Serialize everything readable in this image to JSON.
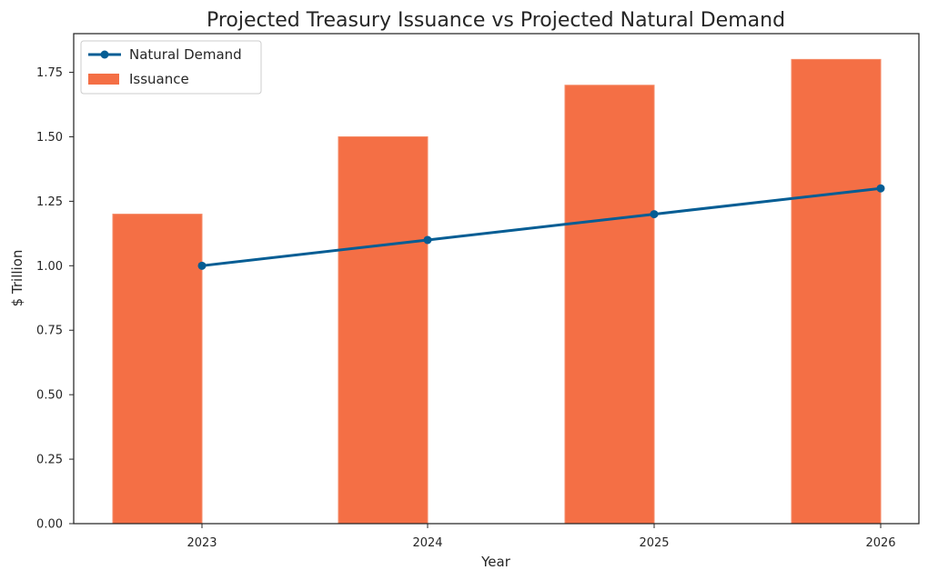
{
  "chart_data": {
    "type": "bar",
    "title": "Projected Treasury Issuance vs Projected Natural Demand",
    "xlabel": "Year",
    "ylabel": "$ Trillion",
    "ylim": [
      0,
      1.9
    ],
    "yticks": [
      "0.00",
      "0.25",
      "0.50",
      "0.75",
      "1.00",
      "1.25",
      "1.50",
      "1.75"
    ],
    "ytick_values": [
      0,
      0.25,
      0.5,
      0.75,
      1.0,
      1.25,
      1.5,
      1.75
    ],
    "categories": [
      "2023",
      "2024",
      "2025",
      "2026"
    ],
    "grid": false,
    "legend_position": "top-left",
    "series": [
      {
        "name": "Issuance",
        "kind": "bar",
        "values": [
          1.2,
          1.5,
          1.7,
          1.8
        ],
        "color": "#f46f45"
      },
      {
        "name": "Natural Demand",
        "kind": "line",
        "values": [
          1.0,
          1.1,
          1.2,
          1.3
        ],
        "color": "#045d94"
      }
    ]
  }
}
